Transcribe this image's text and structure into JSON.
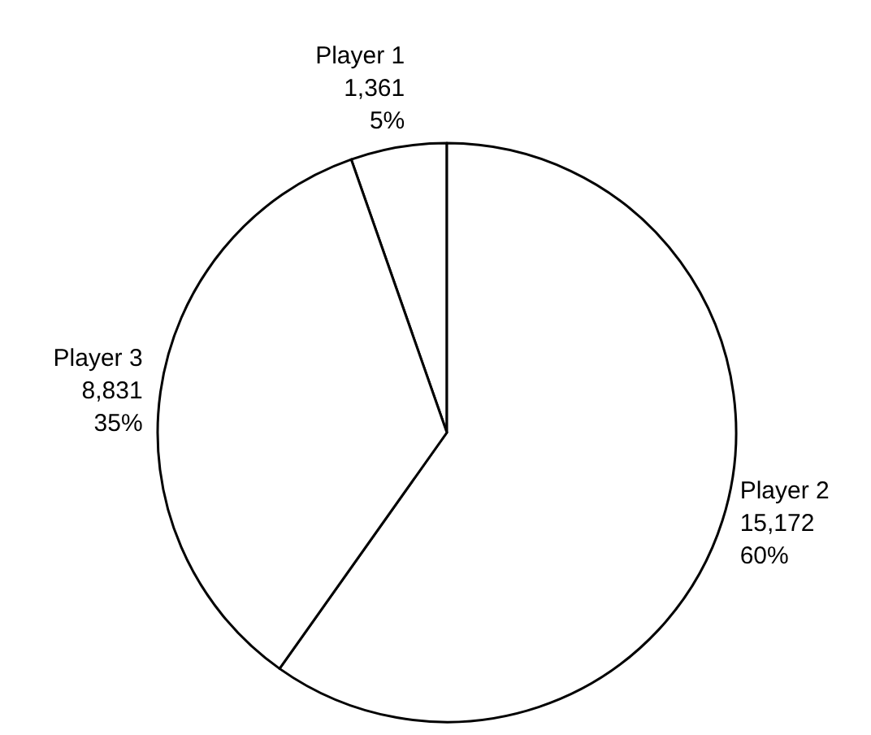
{
  "chart_data": {
    "type": "pie",
    "categories": [
      "Player 1",
      "Player 2",
      "Player 3"
    ],
    "values": [
      1361,
      15172,
      8831
    ],
    "colors": [
      "#ffffff",
      "#ffffff",
      "#ffffff"
    ],
    "value_labels": [
      "1,361\n5%",
      "15,172\n60%",
      "8,831\n35%"
    ],
    "legend": false
  }
}
